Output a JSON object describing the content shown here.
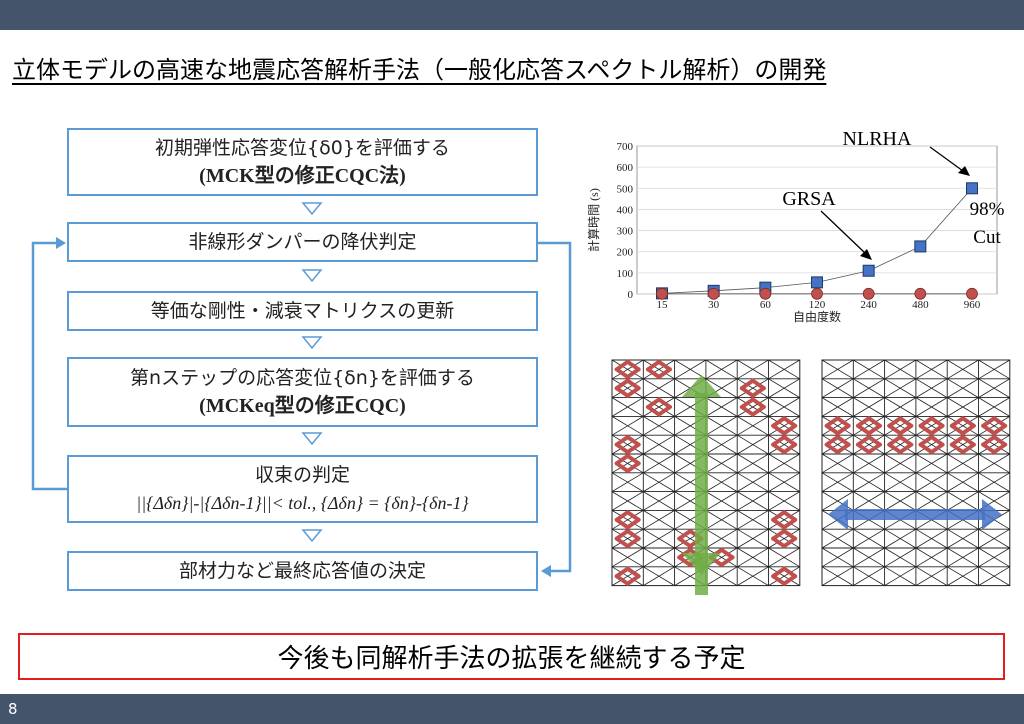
{
  "slide": {
    "title": "立体モデルの高速な地震応答解析手法（一般化応答スペクトル解析）の開発",
    "page_number": "8",
    "conclusion": "今後も同解析手法の拡張を継続する予定"
  },
  "flow": {
    "step1_line1": "初期弾性応答変位{δ0}を評価する",
    "step1_line2": "(MCK型の修正CQC法)",
    "step2": "非線形ダンパーの降伏判定",
    "step3": "等価な剛性・減衰マトリクスの更新",
    "step4_line1": "第nステップの応答変位{δn}を評価する",
    "step4_line2": "(MCKeq型の修正CQC)",
    "step5_line1": "収束の判定",
    "step5_line2": "||{Δδn}|-|{Δδn-1}||< tol.,  {Δδn} = {δn}-{δn-1}",
    "step6": "部材力など最終応答値の決定"
  },
  "chart_data": {
    "type": "line",
    "x": [
      15,
      30,
      60,
      120,
      240,
      480,
      960
    ],
    "xlabel": "自由度数",
    "ylabel": "計算時間 (s)",
    "ylim": [
      0,
      700
    ],
    "yticks": [
      0,
      100,
      200,
      300,
      400,
      500,
      600,
      700
    ],
    "series": [
      {
        "name": "NLRHA",
        "values": [
          3,
          15,
          30,
          55,
          110,
          225,
          500
        ],
        "color": "#4472c4",
        "marker": "square"
      },
      {
        "name": "GRSA",
        "values": [
          1,
          1,
          1,
          1,
          1,
          1,
          1
        ],
        "color": "#c0504d",
        "marker": "circle"
      }
    ],
    "annotations": [
      "NLRHA",
      "GRSA",
      "98%",
      "Cut"
    ]
  },
  "colors": {
    "header_bar": "#44546a",
    "box_border": "#5b9bd5",
    "damper": "#c0504d",
    "up_arrow": "#70ad47",
    "side_arrow": "#4472c4",
    "conclusion_border": "#e02020"
  }
}
